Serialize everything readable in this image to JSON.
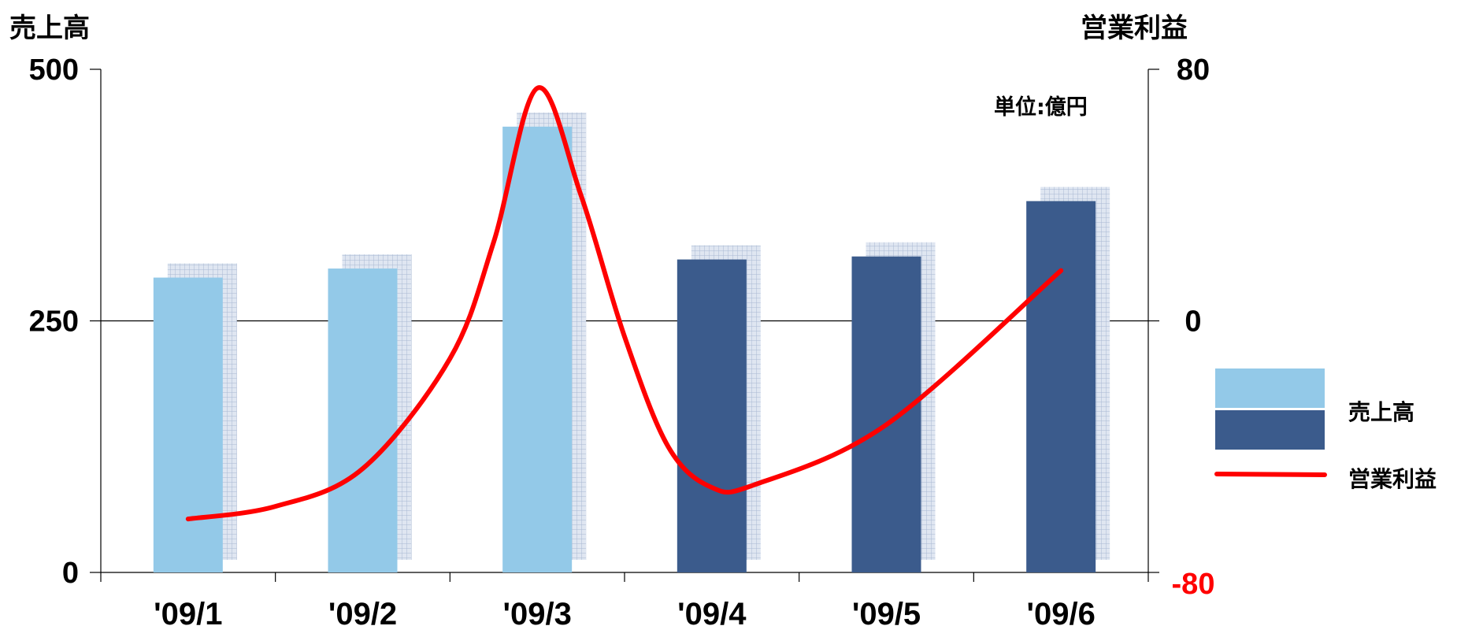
{
  "chart_data": {
    "type": "bar",
    "categories": [
      "'09/1",
      "'09/2",
      "'09/3",
      "'09/4",
      "'09/5",
      "'09/6"
    ],
    "left_axis_title": "売上高",
    "right_axis_title": "営業利益",
    "unit_label": "単位:億円",
    "left_ticks": [
      "500",
      "250",
      "0"
    ],
    "right_ticks": [
      "80",
      "0",
      "-80"
    ],
    "ylim_left": [
      0,
      500
    ],
    "ylim_right": [
      -80,
      80
    ],
    "series": [
      {
        "name": "売上高",
        "type": "bar",
        "axis": "left",
        "values": [
          293,
          302,
          443,
          311,
          314,
          369
        ],
        "colors": [
          "#93C9E8",
          "#93C9E8",
          "#93C9E8",
          "#3B5B8C",
          "#3B5B8C",
          "#3B5B8C"
        ]
      },
      {
        "name": "営業利益",
        "type": "line",
        "axis": "right",
        "color": "#FF0000",
        "points": [
          {
            "x": 0.0,
            "y": -63
          },
          {
            "x": 0.5,
            "y": -59
          },
          {
            "x": 1.0,
            "y": -47
          },
          {
            "x": 1.5,
            "y": -12
          },
          {
            "x": 1.75,
            "y": 25
          },
          {
            "x": 2.0,
            "y": 74
          },
          {
            "x": 2.25,
            "y": 40
          },
          {
            "x": 2.5,
            "y": -5
          },
          {
            "x": 2.75,
            "y": -40
          },
          {
            "x": 3.0,
            "y": -53
          },
          {
            "x": 3.25,
            "y": -52
          },
          {
            "x": 4.0,
            "y": -33
          },
          {
            "x": 5.0,
            "y": 16
          }
        ]
      }
    ],
    "legend": [
      {
        "label": "売上高",
        "kind": "bars",
        "colors": [
          "#93C9E8",
          "#3B5B8C"
        ]
      },
      {
        "label": "営業利益",
        "kind": "line",
        "color": "#FF0000"
      }
    ],
    "grid": "single horizontal line at 250",
    "legend_position": "right",
    "right_bottom_tick_color": "#FF0000"
  }
}
